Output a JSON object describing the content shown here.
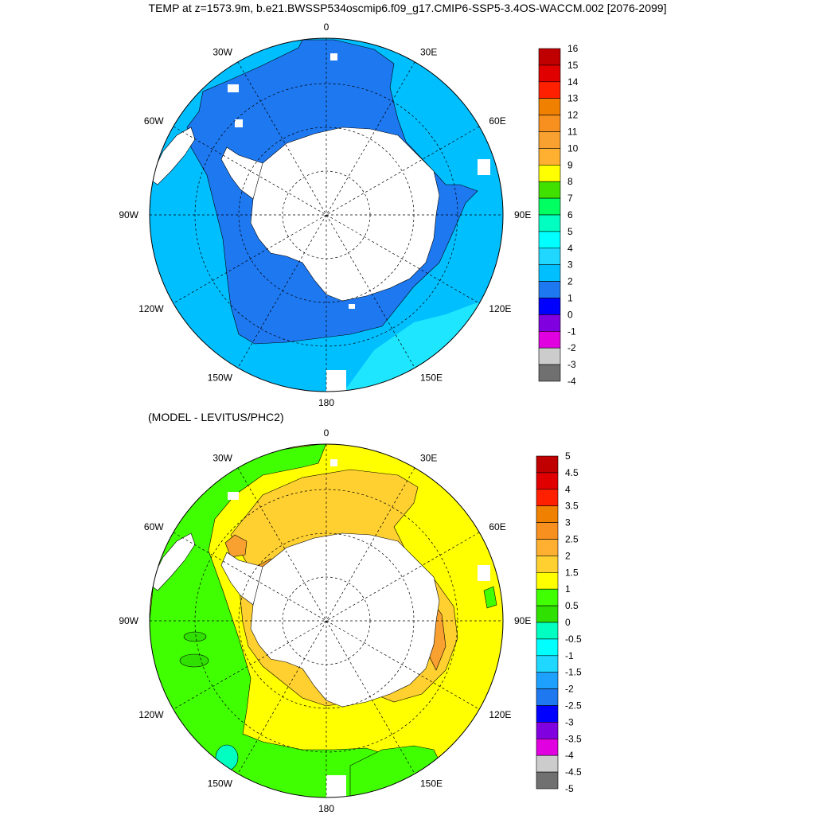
{
  "title": "TEMP at z=1573.9m, b.e21.BWSSP534oscmip6.f09_g17.CMIP6-SSP5-3.4OS-WACCM.002 [2076-2099]",
  "subtitle": "(MODEL - LEVITUS/PHC2)",
  "longitude_labels": [
    "0",
    "30E",
    "60E",
    "90E",
    "120E",
    "150E",
    "180",
    "150W",
    "120W",
    "90W",
    "60W",
    "30W"
  ],
  "top_map": {
    "fill_colors": {
      "dominant": "#00bfff",
      "inner_band": "#1e78f0",
      "outer_patch": "#1ee6ff",
      "land": "#ffffff"
    },
    "colorbar": {
      "levels": [
        "16",
        "15",
        "14",
        "13",
        "12",
        "11",
        "10",
        "9",
        "8",
        "7",
        "6",
        "5",
        "4",
        "3",
        "2",
        "1",
        "0",
        "-1",
        "-2",
        "-3",
        "-4"
      ],
      "colors": [
        "#c00000",
        "#e00000",
        "#ff2000",
        "#f08000",
        "#f89020",
        "#f8a030",
        "#ffb030",
        "#ffff00",
        "#40e000",
        "#00ff60",
        "#00ffc0",
        "#00ffff",
        "#20d8ff",
        "#00bfff",
        "#1e78f0",
        "#0000ff",
        "#8000e0",
        "#e000e0",
        "#cccccc",
        "#707070"
      ]
    }
  },
  "bottom_map": {
    "fill_colors": {
      "dominant": "#ffff00",
      "green_band": "#40ff00",
      "orange": "#ffd030",
      "dark_orange": "#f8a030",
      "teal": "#00ffc0",
      "light_green": "#30e000",
      "land": "#ffffff"
    },
    "colorbar": {
      "levels": [
        "5",
        "4.5",
        "4",
        "3.5",
        "3",
        "2.5",
        "2",
        "1.5",
        "1",
        "0.5",
        "0",
        "-0.5",
        "-1",
        "-1.5",
        "-2",
        "-2.5",
        "-3",
        "-3.5",
        "-4",
        "-4.5",
        "-5"
      ],
      "colors": [
        "#c00000",
        "#e00000",
        "#ff2000",
        "#f08000",
        "#f89020",
        "#ffb030",
        "#ffd030",
        "#ffff00",
        "#40ff00",
        "#30e000",
        "#00ffc0",
        "#00ffff",
        "#20d8ff",
        "#1ea0ff",
        "#1e78f0",
        "#0000ff",
        "#8000e0",
        "#e000e0",
        "#cccccc",
        "#707070"
      ]
    }
  }
}
